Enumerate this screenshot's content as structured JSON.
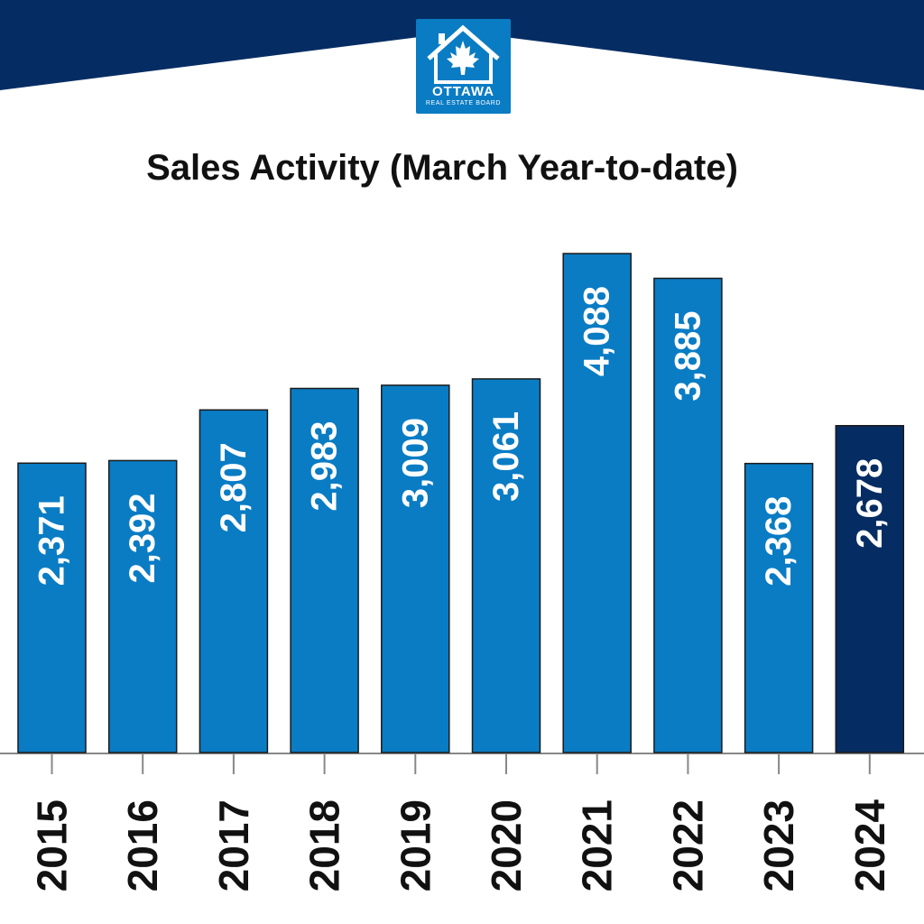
{
  "logo": {
    "name": "OTTAWA",
    "subtitle": "REAL ESTATE BOARD"
  },
  "colors": {
    "header_band": "#062d63",
    "bar": "#0a7cc4",
    "bar_highlight": "#062d63",
    "bar_label": "#ffffff",
    "axis": "#888888"
  },
  "icons": [
    "house-outline-icon",
    "maple-leaf-icon"
  ],
  "chart_data": {
    "type": "bar",
    "title": "Sales Activity (March Year-to-date)",
    "xlabel": "",
    "ylabel": "",
    "categories": [
      "2015",
      "2016",
      "2017",
      "2018",
      "2019",
      "2020",
      "2021",
      "2022",
      "2023",
      "2024"
    ],
    "values": [
      2371,
      2392,
      2807,
      2983,
      3009,
      3061,
      4088,
      3885,
      2368,
      2678
    ],
    "value_labels": [
      "2,371",
      "2,392",
      "2,807",
      "2,983",
      "3,009",
      "3,061",
      "4,088",
      "3,885",
      "2,368",
      "2,678"
    ],
    "highlighted_category": "2024",
    "ylim": [
      0,
      4088
    ],
    "grid": false,
    "legend": "none"
  }
}
